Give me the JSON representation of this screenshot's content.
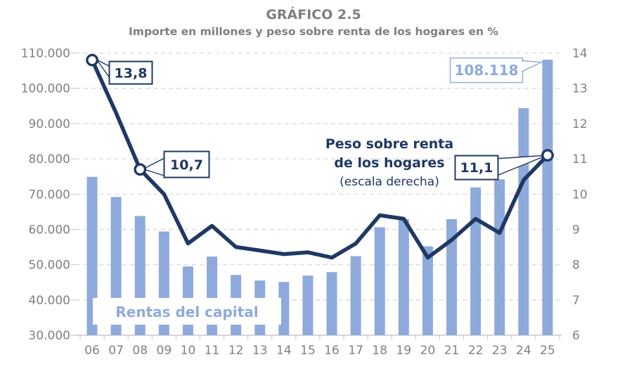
{
  "title": "GRÁFICO 2.5",
  "subtitle": "Importe en millones y peso sobre renta de los hogares en %",
  "colors": {
    "bar": "#8EAADB",
    "line": "#1F3864",
    "gridline": "#D9D9D9",
    "axis_line": "#BFBFBF",
    "axis_text": "#808080",
    "title_text": "#7F7F7F",
    "light_blue_label": "#8EAADB"
  },
  "chart_data": {
    "type": "bar+line",
    "categories": [
      "06",
      "07",
      "08",
      "09",
      "10",
      "11",
      "12",
      "13",
      "14",
      "15",
      "16",
      "17",
      "18",
      "19",
      "20",
      "21",
      "22",
      "23",
      "24",
      "25"
    ],
    "series": [
      {
        "name": "Rentas del capital",
        "type": "bar",
        "axis": "left",
        "values": [
          74900,
          69200,
          63800,
          59400,
          49500,
          52300,
          47100,
          45500,
          45100,
          46900,
          47900,
          52400,
          60600,
          62900,
          55200,
          62900,
          71900,
          74200,
          94400,
          108118
        ]
      },
      {
        "name": "Peso sobre renta de los hogares (escala derecha)",
        "type": "line",
        "axis": "right",
        "values": [
          13.8,
          12.3,
          10.7,
          10.0,
          8.6,
          9.1,
          8.5,
          8.4,
          8.3,
          8.35,
          8.2,
          8.6,
          9.4,
          9.3,
          8.2,
          8.7,
          9.3,
          8.9,
          10.4,
          11.1
        ]
      }
    ],
    "left_axis": {
      "min": 30000,
      "max": 110000,
      "step": 10000,
      "tick_labels": [
        "110.000",
        "100.000",
        "90.000",
        "80.000",
        "70.000",
        "60.000",
        "50.000",
        "40.000",
        "30.000"
      ]
    },
    "right_axis": {
      "min": 6,
      "max": 14,
      "step": 1,
      "tick_labels": [
        "14",
        "13",
        "12",
        "11",
        "10",
        "9",
        "8",
        "7",
        "6"
      ]
    },
    "grid": true,
    "markers": [
      {
        "year": "06",
        "value": 13.8
      },
      {
        "year": "08",
        "value": 10.7
      },
      {
        "year": "25",
        "value": 11.1
      }
    ],
    "annotations": {
      "a06": {
        "year": "06",
        "series": "line",
        "value": 13.8,
        "label": "13,8"
      },
      "a08": {
        "year": "08",
        "series": "line",
        "value": 10.7,
        "label": "10,7"
      },
      "a25": {
        "year": "25",
        "series": "line",
        "value": 11.1,
        "label": "11,1"
      },
      "bar25": {
        "year": "25",
        "series": "bar",
        "value": 108118,
        "label": "108.118"
      }
    },
    "series_labels": {
      "bar_label": "Rentas del capital",
      "line_label_line1": "Peso sobre renta",
      "line_label_line2": "de los hogares",
      "line_label_line3": "(escala derecha)"
    }
  }
}
